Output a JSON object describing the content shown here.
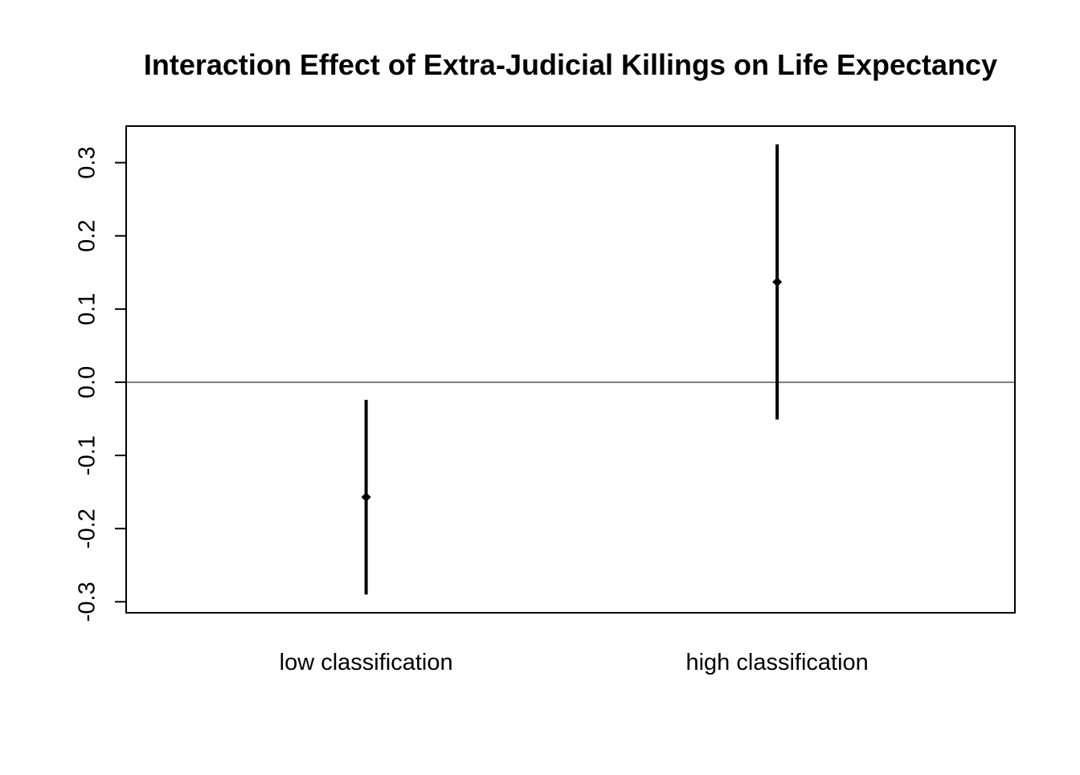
{
  "chart_data": {
    "type": "scatter",
    "title": "Interaction Effect of Extra-Judicial Killings on Life Expectancy",
    "xlabel": "",
    "ylabel": "",
    "categories": [
      "low classification",
      "high classification"
    ],
    "series": [
      {
        "estimates": [
          -0.157,
          0.137
        ],
        "lower": [
          -0.29,
          -0.051
        ],
        "upper": [
          -0.024,
          0.325
        ]
      }
    ],
    "ylim": [
      -0.315,
      0.35
    ],
    "yticks": [
      -0.3,
      -0.2,
      -0.1,
      0.0,
      0.1,
      0.2,
      0.3
    ],
    "ytick_labels": [
      "-0.3",
      "-0.2",
      "-0.1",
      "0.0",
      "0.1",
      "0.2",
      "0.3"
    ],
    "reference_line": 0.0,
    "grid": false,
    "legend": "none",
    "colors": {
      "marks": "#000000",
      "background": "#ffffff"
    }
  }
}
